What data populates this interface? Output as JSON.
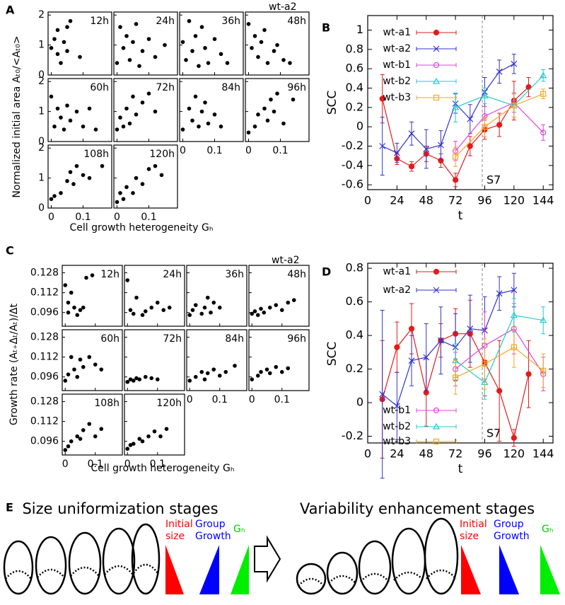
{
  "chart_data": [
    {
      "type": "scatter",
      "label": "A",
      "note": "wt-a2",
      "xlabel": "Cell growth heterogeneity Gₕ",
      "ylabel": "Normalized initial area Aₜ₀/<Aₜ₀>",
      "xlim": [
        -0.01,
        0.19
      ],
      "ylim": [
        0,
        2.1
      ],
      "xticks": [
        0,
        0.1
      ],
      "yticks": [
        0,
        1,
        2
      ],
      "color": "#000000",
      "panels": [
        {
          "label": "12h",
          "x": [
            0.0,
            0.01,
            0.02,
            0.02,
            0.03,
            0.04,
            0.05,
            0.05,
            0.06,
            0.09
          ],
          "y": [
            0.9,
            1.2,
            0.7,
            1.5,
            0.4,
            1.1,
            1.6,
            0.8,
            1.8,
            0.6
          ]
        },
        {
          "label": "24h",
          "x": [
            0.0,
            0.01,
            0.02,
            0.03,
            0.04,
            0.05,
            0.06,
            0.07,
            0.08,
            0.1,
            0.12,
            0.15
          ],
          "y": [
            0.4,
            1.6,
            0.9,
            1.3,
            0.5,
            1.1,
            1.7,
            0.3,
            0.8,
            1.2,
            0.6,
            1.0
          ]
        },
        {
          "label": "36h",
          "x": [
            0.0,
            0.01,
            0.02,
            0.03,
            0.04,
            0.05,
            0.06,
            0.07,
            0.08,
            0.1,
            0.12,
            0.14
          ],
          "y": [
            1.1,
            0.5,
            1.8,
            0.8,
            1.3,
            0.3,
            1.6,
            0.9,
            0.4,
            1.2,
            0.7,
            0.4
          ]
        },
        {
          "label": "48h",
          "x": [
            0.0,
            0.01,
            0.02,
            0.03,
            0.04,
            0.05,
            0.06,
            0.08,
            0.09,
            0.11,
            0.13
          ],
          "y": [
            1.7,
            0.9,
            1.3,
            0.6,
            1.1,
            1.5,
            0.4,
            0.8,
            1.0,
            0.5,
            0.4
          ]
        },
        {
          "label": "60h",
          "x": [
            0.0,
            0.01,
            0.02,
            0.03,
            0.04,
            0.05,
            0.06,
            0.08,
            0.1,
            0.12,
            0.14
          ],
          "y": [
            1.5,
            0.5,
            1.1,
            0.8,
            0.4,
            1.2,
            0.7,
            1.0,
            0.5,
            1.1,
            0.4
          ]
        },
        {
          "label": "72h",
          "x": [
            0.0,
            0.01,
            0.02,
            0.03,
            0.04,
            0.05,
            0.06,
            0.08,
            0.1,
            0.12
          ],
          "y": [
            0.4,
            0.8,
            0.5,
            1.1,
            0.6,
            1.5,
            0.9,
            1.3,
            1.6,
            1.0
          ]
        },
        {
          "label": "84h",
          "x": [
            0.0,
            0.02,
            0.03,
            0.04,
            0.05,
            0.06,
            0.07,
            0.08,
            0.1,
            0.12
          ],
          "y": [
            0.4,
            1.1,
            0.7,
            1.5,
            0.5,
            1.0,
            1.3,
            0.6,
            0.9,
            0.5
          ]
        },
        {
          "label": "96h",
          "x": [
            0.0,
            0.02,
            0.03,
            0.05,
            0.06,
            0.07,
            0.08,
            0.09,
            0.11,
            0.14
          ],
          "y": [
            0.3,
            0.5,
            0.9,
            1.1,
            0.7,
            1.4,
            1.0,
            1.6,
            0.6,
            1.4
          ]
        },
        {
          "label": "108h",
          "x": [
            0.0,
            0.01,
            0.03,
            0.05,
            0.06,
            0.07,
            0.08,
            0.1,
            0.12,
            0.16
          ],
          "y": [
            0.3,
            0.4,
            0.5,
            0.9,
            1.2,
            0.8,
            1.4,
            1.1,
            1.0,
            1.4
          ]
        },
        {
          "label": "120h",
          "x": [
            0.0,
            0.01,
            0.02,
            0.03,
            0.05,
            0.06,
            0.08,
            0.1,
            0.12,
            0.14
          ],
          "y": [
            0.2,
            0.5,
            0.3,
            0.7,
            0.5,
            1.0,
            0.8,
            1.3,
            1.4,
            1.1
          ]
        }
      ]
    },
    {
      "type": "line",
      "label": "B",
      "xlabel": "t",
      "ylabel": "SCC",
      "xlim": [
        0,
        152
      ],
      "ylim": [
        -0.65,
        1.15
      ],
      "xticks": [
        0,
        24,
        48,
        72,
        96,
        120,
        144
      ],
      "yticks": [
        -0.6,
        -0.4,
        -0.2,
        0,
        0.2,
        0.4,
        0.6,
        0.8,
        1
      ],
      "vline": 94,
      "vline_label": "S7",
      "series": [
        {
          "name": "wt-a1",
          "color": "#e41a1c",
          "marker": "circle-filled",
          "x": [
            12,
            24,
            36,
            48,
            60,
            72,
            84,
            96,
            108,
            120,
            132
          ],
          "values": [
            0.29,
            -0.33,
            -0.41,
            -0.28,
            -0.35,
            -0.55,
            -0.2,
            -0.03,
            0.02,
            0.27,
            0.41
          ],
          "errors": [
            0.25,
            0.06,
            0.05,
            0.08,
            0.07,
            0.07,
            0.1,
            0.1,
            0.12,
            0.2,
            0.1
          ]
        },
        {
          "name": "wt-a2",
          "color": "#3333cc",
          "marker": "cross",
          "x": [
            12,
            24,
            36,
            48,
            60,
            72,
            84,
            96,
            108,
            120
          ],
          "values": [
            -0.2,
            -0.27,
            -0.07,
            -0.23,
            -0.19,
            0.24,
            0.08,
            0.36,
            0.57,
            0.65
          ],
          "errors": [
            0.3,
            0.1,
            0.12,
            0.2,
            0.15,
            0.1,
            0.15,
            0.15,
            0.12,
            0.1
          ]
        },
        {
          "name": "wt-b1",
          "color": "#dd44dd",
          "marker": "circle",
          "x": [
            72,
            96,
            120,
            144
          ],
          "values": [
            -0.25,
            0.11,
            0.25,
            -0.06
          ],
          "errors": [
            0.1,
            0.1,
            0.1,
            0.08
          ]
        },
        {
          "name": "wt-b2",
          "color": "#22cccc",
          "marker": "triangle",
          "x": [
            72,
            96,
            120,
            144
          ],
          "values": [
            0.2,
            0.32,
            0.22,
            0.53
          ],
          "errors": [
            0.15,
            0.08,
            0.12,
            0.06
          ]
        },
        {
          "name": "wt-b3",
          "color": "#f5a623",
          "marker": "square",
          "x": [
            72,
            96,
            120,
            144
          ],
          "values": [
            -0.31,
            0.0,
            0.22,
            0.34
          ],
          "errors": [
            0.1,
            0.1,
            0.12,
            0.05
          ]
        }
      ]
    },
    {
      "type": "scatter",
      "label": "C",
      "note": "wt-a2",
      "xlabel": "Cell growth heterogeneity Gₕ",
      "ylabel": "Growth rate (Aₜ₊Δₜ/Aₜ)/Δt",
      "xlim": [
        -0.01,
        0.19
      ],
      "ylim": [
        0.085,
        0.134
      ],
      "xticks": [
        0,
        0.1
      ],
      "yticks": [
        0.096,
        0.112,
        0.128
      ],
      "color": "#000000",
      "panels": [
        {
          "label": "12h",
          "x": [
            0.0,
            0.01,
            0.01,
            0.02,
            0.03,
            0.04,
            0.05,
            0.06,
            0.07,
            0.09
          ],
          "y": [
            0.118,
            0.104,
            0.096,
            0.112,
            0.1,
            0.094,
            0.098,
            0.1,
            0.124,
            0.126
          ]
        },
        {
          "label": "24h",
          "x": [
            0.0,
            0.01,
            0.02,
            0.03,
            0.05,
            0.06,
            0.08,
            0.1,
            0.12,
            0.14
          ],
          "y": [
            0.122,
            0.098,
            0.095,
            0.108,
            0.094,
            0.097,
            0.1,
            0.104,
            0.098,
            0.1
          ]
        },
        {
          "label": "36h",
          "x": [
            0.0,
            0.01,
            0.02,
            0.04,
            0.05,
            0.06,
            0.07,
            0.08,
            0.1
          ],
          "y": [
            0.094,
            0.098,
            0.102,
            0.095,
            0.1,
            0.108,
            0.096,
            0.104,
            0.1
          ]
        },
        {
          "label": "48h",
          "x": [
            0.0,
            0.01,
            0.02,
            0.03,
            0.04,
            0.06,
            0.08,
            0.1,
            0.12,
            0.14
          ],
          "y": [
            0.095,
            0.097,
            0.094,
            0.099,
            0.096,
            0.1,
            0.102,
            0.098,
            0.104,
            0.106
          ]
        },
        {
          "label": "60h",
          "x": [
            0.0,
            0.01,
            0.02,
            0.03,
            0.04,
            0.05,
            0.06,
            0.08,
            0.1,
            0.12
          ],
          "y": [
            0.093,
            0.098,
            0.112,
            0.102,
            0.096,
            0.11,
            0.104,
            0.112,
            0.106,
            0.102
          ]
        },
        {
          "label": "72h",
          "x": [
            0.0,
            0.01,
            0.02,
            0.03,
            0.04,
            0.06,
            0.08,
            0.1
          ],
          "y": [
            0.092,
            0.094,
            0.093,
            0.095,
            0.094,
            0.096,
            0.095,
            0.094
          ]
        },
        {
          "label": "84h",
          "x": [
            0.0,
            0.02,
            0.04,
            0.05,
            0.06,
            0.08,
            0.1,
            0.12,
            0.15
          ],
          "y": [
            0.093,
            0.096,
            0.1,
            0.094,
            0.099,
            0.102,
            0.097,
            0.1,
            0.105
          ]
        },
        {
          "label": "96h",
          "x": [
            0.0,
            0.02,
            0.03,
            0.05,
            0.06,
            0.08,
            0.1,
            0.12
          ],
          "y": [
            0.094,
            0.097,
            0.1,
            0.102,
            0.099,
            0.104,
            0.1,
            0.103
          ]
        },
        {
          "label": "108h",
          "x": [
            0.0,
            0.01,
            0.02,
            0.04,
            0.05,
            0.06,
            0.08,
            0.1,
            0.12
          ],
          "y": [
            0.089,
            0.092,
            0.096,
            0.1,
            0.098,
            0.105,
            0.11,
            0.1,
            0.106
          ]
        },
        {
          "label": "120h",
          "x": [
            0.0,
            0.01,
            0.02,
            0.04,
            0.05,
            0.07,
            0.09,
            0.11,
            0.13
          ],
          "y": [
            0.09,
            0.093,
            0.094,
            0.098,
            0.096,
            0.1,
            0.104,
            0.1,
            0.106
          ]
        }
      ]
    },
    {
      "type": "line",
      "label": "D",
      "xlabel": "t",
      "ylabel": "SCC",
      "xlim": [
        0,
        152
      ],
      "ylim": [
        -0.24,
        0.83
      ],
      "xticks": [
        0,
        24,
        48,
        72,
        96,
        120,
        144
      ],
      "yticks": [
        -0.2,
        0,
        0.2,
        0.4,
        0.6,
        0.8
      ],
      "vline": 94,
      "vline_label": "S7",
      "series": [
        {
          "name": "wt-a1",
          "color": "#e41a1c",
          "marker": "circle-filled",
          "x": [
            12,
            24,
            36,
            48,
            60,
            72,
            84,
            96,
            108,
            120,
            132
          ],
          "values": [
            0.02,
            0.33,
            0.44,
            0.06,
            0.37,
            0.41,
            0.41,
            0.24,
            0.07,
            -0.21,
            0.17
          ],
          "errors": [
            0.35,
            0.15,
            0.15,
            0.2,
            0.1,
            0.15,
            0.2,
            0.2,
            0.3,
            0.05,
            0.2
          ]
        },
        {
          "name": "wt-a2",
          "color": "#3333cc",
          "marker": "cross",
          "x": [
            12,
            24,
            36,
            48,
            60,
            72,
            84,
            96,
            108,
            120
          ],
          "values": [
            0.05,
            -0.02,
            0.25,
            0.27,
            0.37,
            0.33,
            0.44,
            0.43,
            0.65,
            0.67
          ],
          "errors": [
            0.5,
            0.2,
            0.15,
            0.2,
            0.2,
            0.2,
            0.2,
            0.2,
            0.1,
            0.1
          ]
        },
        {
          "name": "wt-b1",
          "color": "#dd44dd",
          "marker": "circle",
          "x": [
            72,
            96,
            120,
            144
          ],
          "values": [
            0.2,
            0.34,
            0.44,
            0.17
          ],
          "errors": [
            0.1,
            0.2,
            0.15,
            0.1
          ]
        },
        {
          "name": "wt-b2",
          "color": "#22cccc",
          "marker": "triangle",
          "x": [
            72,
            96,
            120,
            144
          ],
          "values": [
            0.25,
            0.12,
            0.52,
            0.49
          ],
          "errors": [
            0.1,
            0.1,
            0.1,
            0.08
          ]
        },
        {
          "name": "wt-b3",
          "color": "#f5a623",
          "marker": "square",
          "x": [
            72,
            96,
            120,
            144
          ],
          "values": [
            0.15,
            0.23,
            0.33,
            0.19
          ],
          "errors": [
            0.1,
            0.15,
            0.12,
            0.1
          ]
        }
      ]
    }
  ],
  "diagram": {
    "label": "E",
    "stages": [
      {
        "title": "Size uniformization stages",
        "legend": [
          [
            "Initial",
            "size"
          ],
          [
            "Group",
            "Growth"
          ],
          [
            "Gₕ"
          ]
        ]
      },
      {
        "title": "Variability enhancement stages",
        "legend": [
          [
            "Initial",
            "size"
          ],
          [
            "Group",
            "Growth"
          ],
          [
            "Gₕ"
          ]
        ]
      }
    ]
  }
}
